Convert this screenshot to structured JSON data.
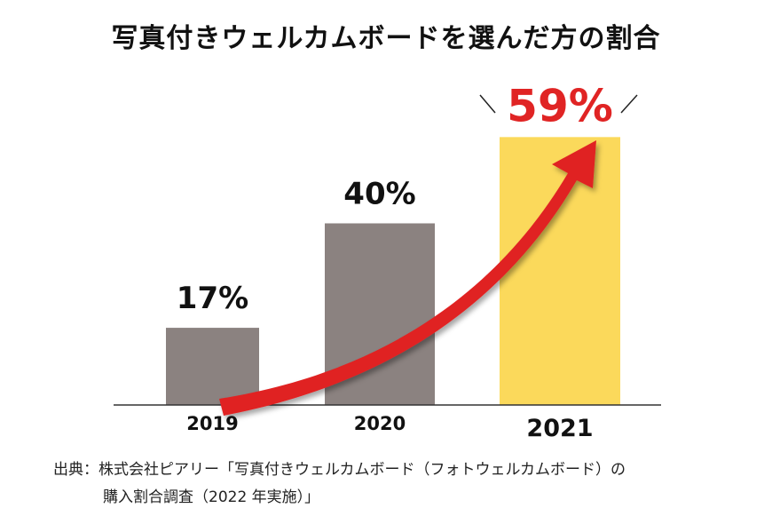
{
  "chart_data": {
    "type": "bar",
    "title": "写真付きウェルカムボードを選んだ方の割合",
    "categories": [
      "2019",
      "2020",
      "2021"
    ],
    "values": [
      17,
      40,
      59
    ],
    "value_labels": [
      "17%",
      "40%",
      "59%"
    ],
    "ylim": [
      0,
      62
    ],
    "xlabel": "",
    "ylabel": "",
    "grid": false,
    "bar_colors": [
      "#8b8280",
      "#8b8280",
      "#fbd95b"
    ],
    "highlight_color": "#e02424",
    "arrow_color": "#e02424"
  },
  "source": {
    "line1": "出典：株式会社ピアリー「写真付きウェルカムボード（フォトウェルカムボード）の",
    "line2": "購入割合調査（2022 年実施）」"
  }
}
